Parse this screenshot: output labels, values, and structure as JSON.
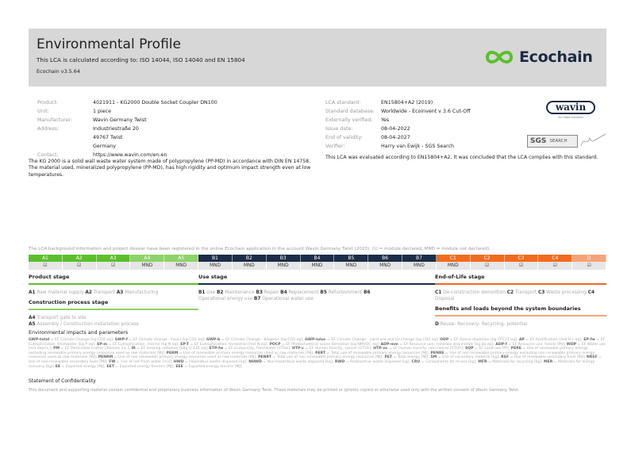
{
  "header": {
    "title": "Environmental Profile",
    "subtitle": "This LCA is calculated according to: ISO 14044, ISO 14040 and EN 15804",
    "version": "Ecochain v3.5.64",
    "brand": "Ecochain",
    "brand_color": "#5bbf2a"
  },
  "product_info": [
    {
      "label": "Product:",
      "value": "4021911 - KG2000 Double Socket Coupler DN100"
    },
    {
      "label": "Unit:",
      "value": "1 piece"
    },
    {
      "label": "Manufacturer:",
      "value": "Wavin Germany Twist"
    },
    {
      "label": "Address:",
      "value": "Industriestraße 20\n49767 Twist\nGermany"
    },
    {
      "label": "Contact:",
      "value": "https://www.wavin.com/en-en"
    }
  ],
  "description": "The KG 2000 is a solid wall waste water system made of polypropylene (PP-MD) in accordance with DIN EN 14758. The material used, mineralized polypropylene (PP-MD), has high rigidity and optimum impact strength even at low temperatures.",
  "lca_info": [
    {
      "label": "LCA standard:",
      "value": "EN15804+A2 (2019)"
    },
    {
      "label": "Standard database:",
      "value": "Worldwide - Ecoinvent v 3.6 Cut-Off"
    },
    {
      "label": "Externally verified:",
      "value": "Yes"
    },
    {
      "label": "Issue date:",
      "value": "08-04-2022"
    },
    {
      "label": "End of validity:",
      "value": "08-04-2027"
    },
    {
      "label": "Verifier:",
      "value": "Harry van Ewijk - SGS Search"
    }
  ],
  "evaluation": "This LCA was evaluated according to EN15804+A2. It was concluded that the LCA complies with this standard.",
  "logos": {
    "wavin": "wavin",
    "wavin_sub": "An Orbia business",
    "sgs": "SGS",
    "sgs_search": "SEARCH"
  },
  "notice": "The LCA background information and project dossier have been registered in the online Ecochain application in the account Wavin Germany Twist (2020). (☑ = module declared, MND = module not declared).",
  "modules": [
    {
      "code": "A1",
      "value": "☑",
      "color": "#5cbf2a"
    },
    {
      "code": "A2",
      "value": "☑",
      "color": "#5cbf2a"
    },
    {
      "code": "A3",
      "value": "☑",
      "color": "#5cbf2a"
    },
    {
      "code": "A4",
      "value": "MND",
      "color": "#8ed268"
    },
    {
      "code": "A5",
      "value": "MND",
      "color": "#8ed268"
    },
    {
      "code": "B1",
      "value": "MND",
      "color": "#1b2d48"
    },
    {
      "code": "B2",
      "value": "MND",
      "color": "#1b2d48"
    },
    {
      "code": "B3",
      "value": "MND",
      "color": "#1b2d48"
    },
    {
      "code": "B4",
      "value": "MND",
      "color": "#1b2d48"
    },
    {
      "code": "B5",
      "value": "MND",
      "color": "#1b2d48"
    },
    {
      "code": "B6",
      "value": "MND",
      "color": "#1b2d48"
    },
    {
      "code": "B7",
      "value": "MND",
      "color": "#1b2d48"
    },
    {
      "code": "C1",
      "value": "MND",
      "color": "#f26a1e"
    },
    {
      "code": "C2",
      "value": "☑",
      "color": "#f26a1e"
    },
    {
      "code": "C3",
      "value": "☑",
      "color": "#f26a1e"
    },
    {
      "code": "C4",
      "value": "☑",
      "color": "#f26a1e"
    },
    {
      "code": "D",
      "value": "☑",
      "color": "#f6a377"
    }
  ],
  "stages": {
    "product": {
      "title": "Product stage",
      "items": [
        {
          "code": "A1",
          "label": "Raw material supply"
        },
        {
          "code": "A2",
          "label": "Transport"
        },
        {
          "code": "A3",
          "label": "Manufacturing"
        }
      ]
    },
    "construction": {
      "title": "Construction process stage",
      "items": [
        {
          "code": "A4",
          "label": "Transport gate to site"
        },
        {
          "code": "A5",
          "label": "Assembly / Construction installation process"
        }
      ]
    },
    "use": {
      "title": "Use stage",
      "items": [
        {
          "code": "B1",
          "label": "Use"
        },
        {
          "code": "B2",
          "label": "Maintenance"
        },
        {
          "code": "B3",
          "label": "Repair"
        },
        {
          "code": "B4",
          "label": "Replacement"
        },
        {
          "code": "B5",
          "label": "Refurbishment"
        },
        {
          "code": "B6",
          "label": "Operational energy use"
        },
        {
          "code": "B7",
          "label": "Operational water use"
        }
      ]
    },
    "eol": {
      "title": "End-of-Life stage",
      "items": [
        {
          "code": "C1",
          "label": "De-construction demolition"
        },
        {
          "code": "C2",
          "label": "Transport"
        },
        {
          "code": "C3",
          "label": "Waste processing"
        },
        {
          "code": "C4",
          "label": "Disposal"
        }
      ]
    },
    "beyond": {
      "title": "Benefits and loads beyond the system boundaries",
      "items": [
        {
          "code": "D",
          "label": "Reuse- Recovery- Recycling- potential"
        }
      ]
    }
  },
  "environmental": {
    "title": "Environmental impacts and parameters",
    "glossary": [
      [
        "GWP-total",
        "EF Climate Change [kg CO2 eq]"
      ],
      [
        "GWP-f",
        "EF Climate change - Fossil [kg CO2 eq]"
      ],
      [
        "GWP-b",
        "EF Climate Change - Biogenic [kg CO2 eq]"
      ],
      [
        "GWP-luluc",
        "EF Climate Change - Land use and LU change [kg CO2 eq]"
      ],
      [
        "ODP",
        "EF Ozone depletion [kg CFC11 eq]"
      ],
      [
        "AP",
        "EF Acidification [mol H+ eq]"
      ],
      [
        "EP-fw",
        "EF Eutrophication, freshwater [kg P eq]"
      ],
      [
        "EP-m",
        "EF Eutrophication, marine [kg N eq]"
      ],
      [
        "EP-T",
        "EF Eutrophication, terrestrial [mol N eq]"
      ],
      [
        "POCP",
        "EF Photochemical ozone formation [kg NMVOC eq]"
      ],
      [
        "ADP-mm",
        "EF Resource use, minerals and metals [kg Sb eq]"
      ],
      [
        "ADP-f",
        "EF Resource use, fossils [MJ]"
      ],
      [
        "WDP",
        "EF Water use [m3 depriv.]"
      ],
      [
        "PM",
        "EF Particulate matter [disease inc.]"
      ],
      [
        "IR",
        "EF Ionising radiation [kBq U-235 eq]"
      ],
      [
        "ETP-fw",
        "EF Ecotoxicity, freshwater [CTUe]"
      ],
      [
        "HTP-c",
        "EF Human toxicity, cancer [CTUh]"
      ],
      [
        "HTP-nc",
        "EF Human toxicity, non cancer [CTUh]"
      ],
      [
        "SQP",
        "EF Land use [Pt]"
      ],
      [
        "PERE",
        "Use of renewable primary energy excluding renewable primary energy resources used as raw materials [MJ]"
      ],
      [
        "PERM",
        "Use of renewable primary energy resources used as raw materials [MJ]"
      ],
      [
        "PERT",
        "Total use of renewable primary energy resources [MJ]"
      ],
      [
        "PENRE",
        "Use of non renewable primary energy excluding non renewable primary energy resources used as raw materials [MJ]"
      ],
      [
        "PENRM",
        "Use of non renewable primary energy resources used as raw materials [MJ]"
      ],
      [
        "PENRT",
        "Total use of non renewable primary energy resources [MJ]"
      ],
      [
        "PET",
        "Total energy [MJ]"
      ],
      [
        "SM",
        "Use of secondary material [kg]"
      ],
      [
        "RSF",
        "Use of renewable secondary fuels [MJ]"
      ],
      [
        "NRSF",
        "Use of non-renewable secondary fuels [MJ]"
      ],
      [
        "FW",
        "Use of net fresh water [m3]"
      ],
      [
        "HWD",
        "Hazardous waste disposed [kg]"
      ],
      [
        "NHWD",
        "Non-hazardous waste disposed [kg]"
      ],
      [
        "RWD",
        "Radioactive waste disposed [kg]"
      ],
      [
        "CRU",
        "Components for re-use [kg]"
      ],
      [
        "MFR",
        "Materials for recycling [kg]"
      ],
      [
        "MER",
        "Materials for energy recovery [kg]"
      ],
      [
        "EE",
        "Exported energy [MJ]"
      ],
      [
        "EET",
        "Exported energy thermic [MJ]"
      ],
      [
        "EEE",
        "Exported energy electric [MJ]"
      ]
    ]
  },
  "confidentiality": {
    "title": "Statement of Confidentiality",
    "text": "This document and supporting material contain confidential and proprietary business information of Wavin Germany Twist. These materials may be printed or (photo) copied or otherwise used only with the written consent of Wavin Germany Twist."
  }
}
